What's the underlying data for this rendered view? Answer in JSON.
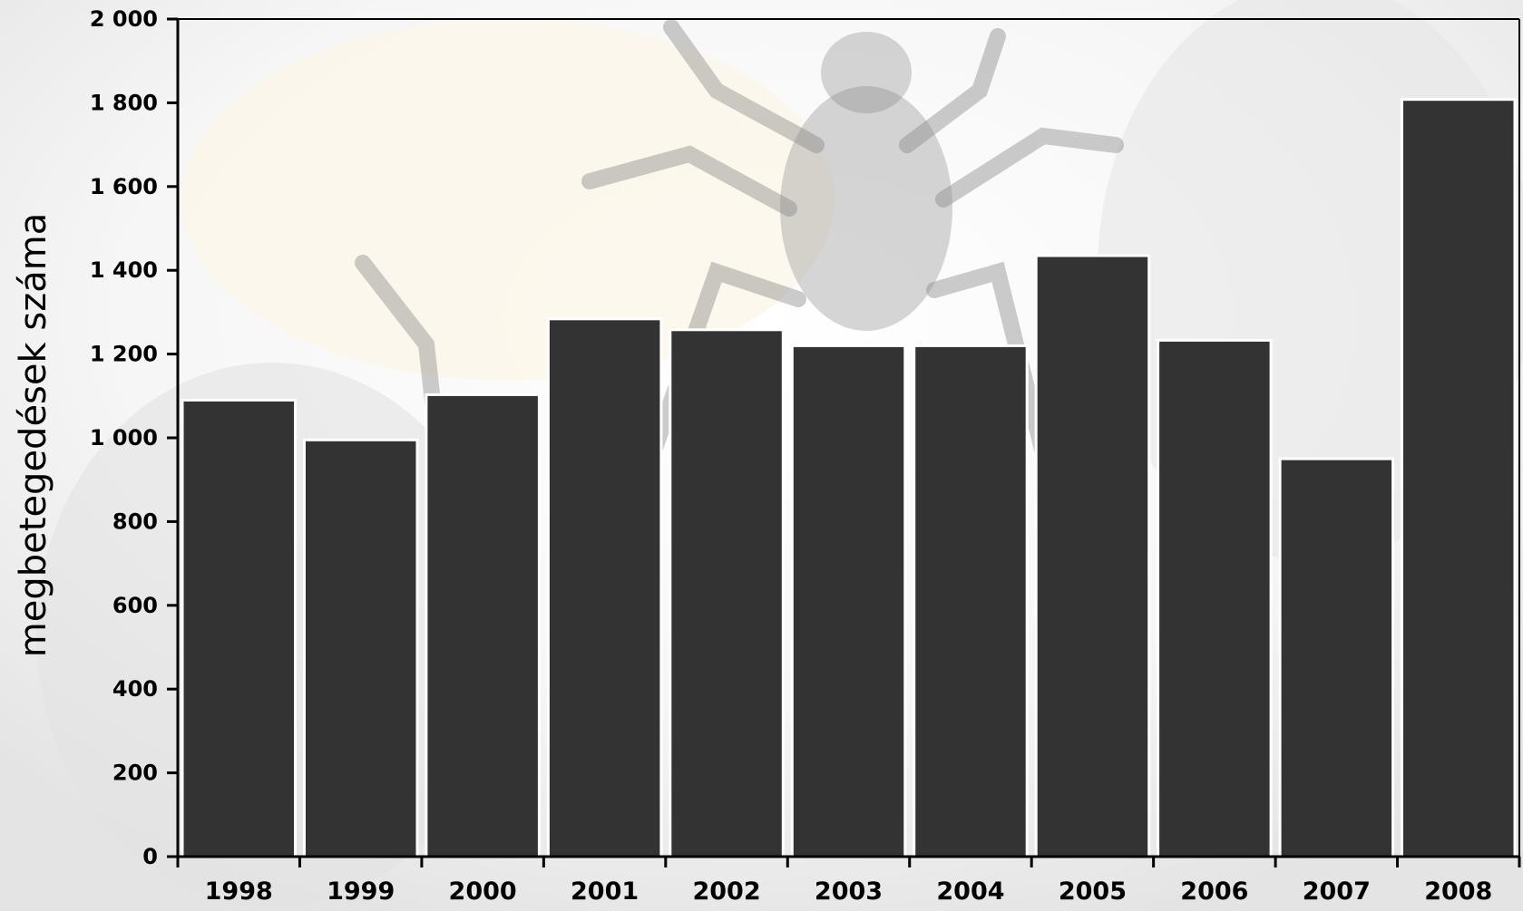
{
  "chart_data": {
    "type": "bar",
    "categories": [
      "1998",
      "1999",
      "2000",
      "2001",
      "2002",
      "2003",
      "2004",
      "2005",
      "2006",
      "2007",
      "2008"
    ],
    "series": [
      {
        "values": [
          1090,
          995,
          1103,
          1284,
          1258,
          1220,
          1220,
          1435,
          1233,
          950,
          1808
        ]
      }
    ],
    "ylabel": "megbetegedések száma",
    "xlabel": "",
    "ylim": [
      0,
      2000
    ],
    "yticks": [
      0,
      200,
      400,
      600,
      800,
      1000,
      1200,
      1400,
      1600,
      1800,
      2000
    ],
    "ytick_labels": [
      "0",
      "200",
      "400",
      "600",
      "800",
      "1 000",
      "1 200",
      "1 400",
      "1 600",
      "1 800",
      "2 000"
    ],
    "bar_color": "#333333",
    "background": "tick photograph (faded)",
    "grid": false,
    "legend": "none"
  }
}
